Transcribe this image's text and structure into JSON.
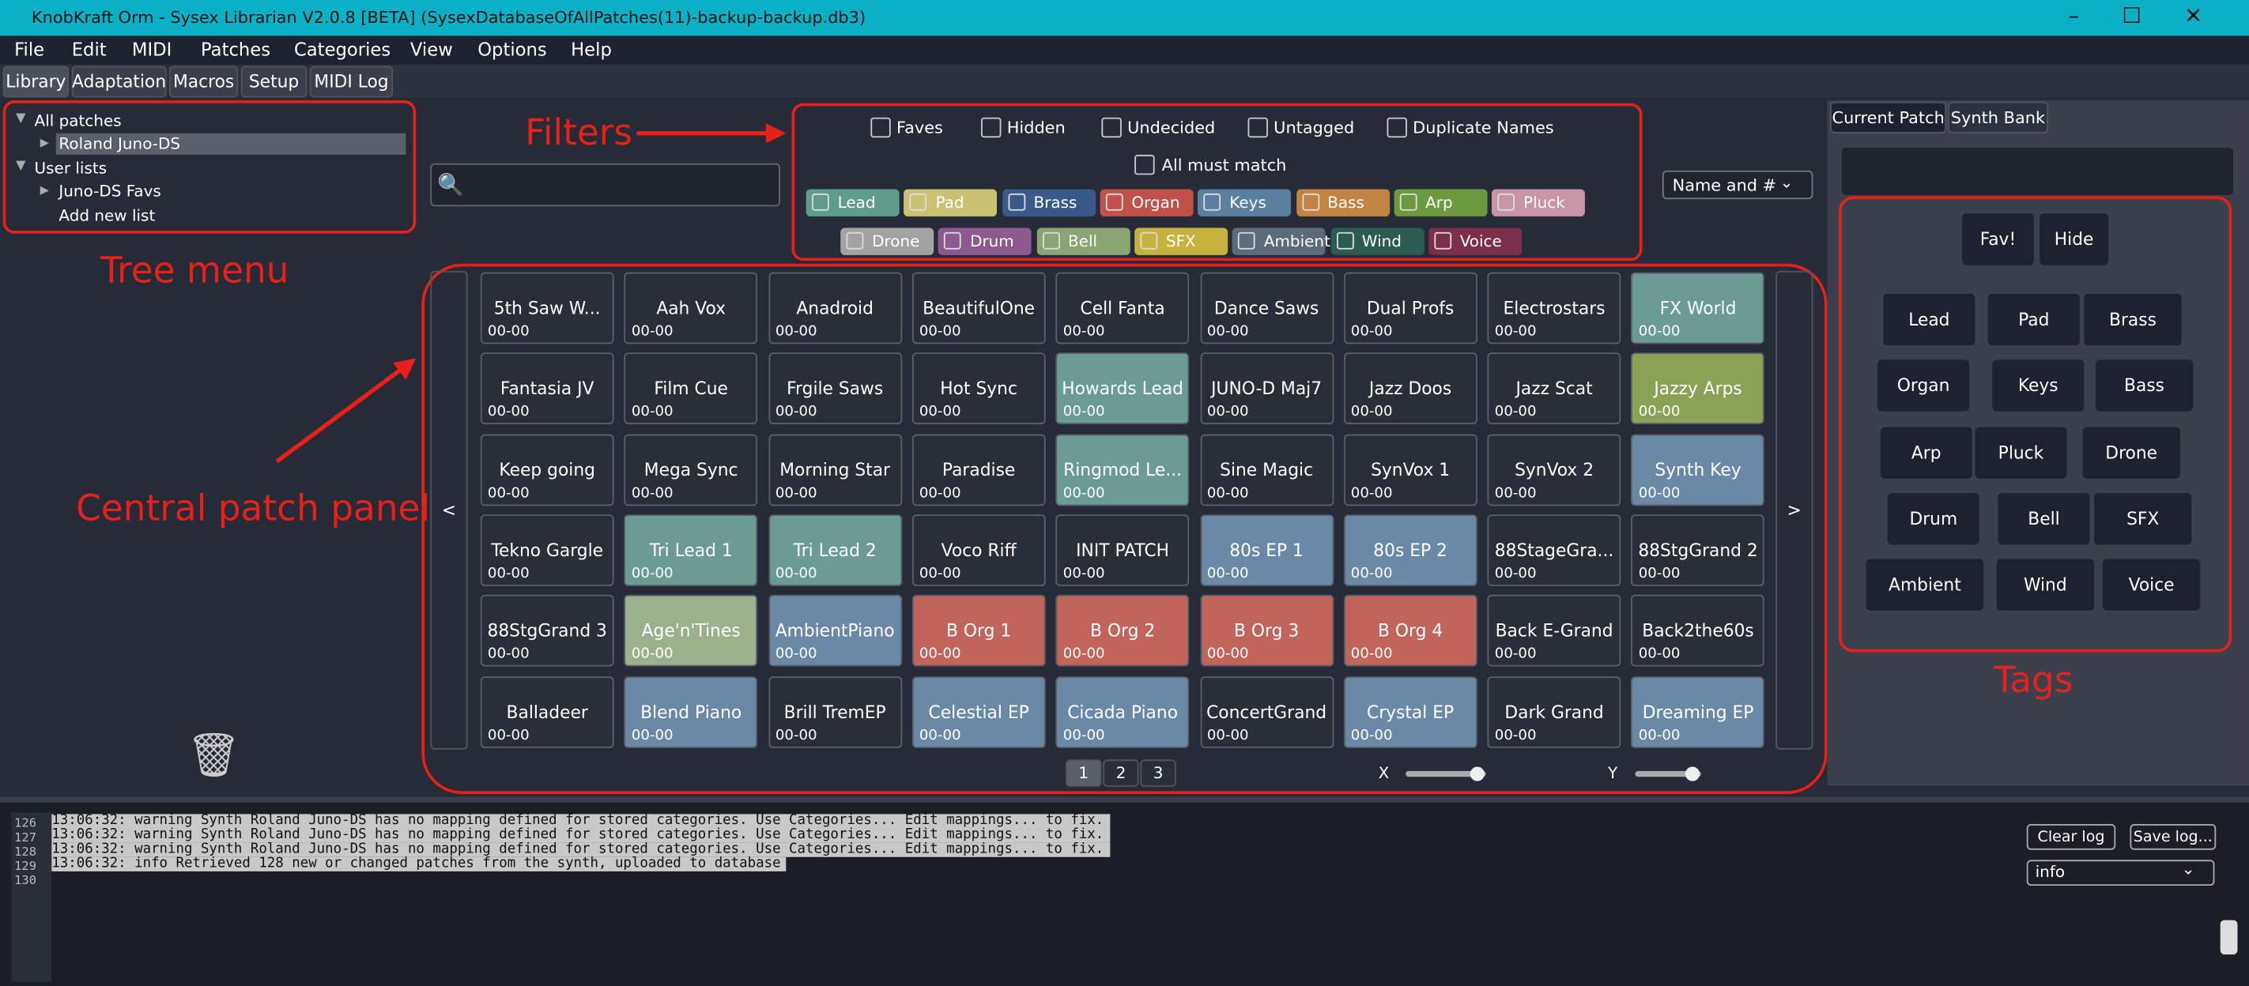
{
  "window": {
    "title": "KnobKraft Orm - Sysex Librarian V2.0.8 [BETA] (SysexDatabaseOfAllPatches(11)-backup-backup.db3)"
  },
  "menu": [
    "File",
    "Edit",
    "MIDI",
    "Patches",
    "Categories",
    "View",
    "Options",
    "Help"
  ],
  "tabs": [
    "Library",
    "Adaptation",
    "Macros",
    "Setup",
    "MIDI Log"
  ],
  "tree": {
    "all": "All patches",
    "synth": "Roland Juno-DS",
    "user": "User lists",
    "list": "Juno-DS Favs",
    "add": "Add new list"
  },
  "filters": {
    "checks": [
      "Faves",
      "Hidden",
      "Undecided",
      "Untagged",
      "Duplicate Names"
    ],
    "all_must_match": "All must match",
    "categories": [
      {
        "name": "Lead",
        "color": "#5f9c8c"
      },
      {
        "name": "Pad",
        "color": "#c9c273"
      },
      {
        "name": "Brass",
        "color": "#3b5a8c"
      },
      {
        "name": "Organ",
        "color": "#c0524a"
      },
      {
        "name": "Keys",
        "color": "#5a7fa0"
      },
      {
        "name": "Bass",
        "color": "#c38443"
      },
      {
        "name": "Arp",
        "color": "#6c9a3f"
      },
      {
        "name": "Pluck",
        "color": "#c795a6"
      },
      {
        "name": "Drone",
        "color": "#a3a3a3"
      },
      {
        "name": "Drum",
        "color": "#8c5a8e"
      },
      {
        "name": "Bell",
        "color": "#8aa473"
      },
      {
        "name": "SFX",
        "color": "#c6b23c"
      },
      {
        "name": "Ambient",
        "color": "#5b6b7a"
      },
      {
        "name": "Wind",
        "color": "#2b5c52"
      },
      {
        "name": "Voice",
        "color": "#7b2f4a"
      }
    ],
    "sort": "Name and #"
  },
  "patches": [
    {
      "name": "5th Saw W...",
      "num": "00-00",
      "color": "#2a2e38"
    },
    {
      "name": "Aah Vox",
      "num": "00-00",
      "color": "#2a2e38"
    },
    {
      "name": "Anadroid",
      "num": "00-00",
      "color": "#2a2e38"
    },
    {
      "name": "BeautifulOne",
      "num": "00-00",
      "color": "#2a2e38"
    },
    {
      "name": "Cell Fanta",
      "num": "00-00",
      "color": "#2a2e38"
    },
    {
      "name": "Dance Saws",
      "num": "00-00",
      "color": "#2a2e38"
    },
    {
      "name": "Dual Profs",
      "num": "00-00",
      "color": "#2a2e38"
    },
    {
      "name": "Electrostars",
      "num": "00-00",
      "color": "#2a2e38"
    },
    {
      "name": "FX World",
      "num": "00-00",
      "color": "#6a9c93"
    },
    {
      "name": "Fantasia JV",
      "num": "00-00",
      "color": "#2a2e38"
    },
    {
      "name": "Film Cue",
      "num": "00-00",
      "color": "#2a2e38"
    },
    {
      "name": "Frgile Saws",
      "num": "00-00",
      "color": "#2a2e38"
    },
    {
      "name": "Hot Sync",
      "num": "00-00",
      "color": "#2a2e38"
    },
    {
      "name": "Howards Lead",
      "num": "00-00",
      "color": "#6a9c93"
    },
    {
      "name": "JUNO-D Maj7",
      "num": "00-00",
      "color": "#2a2e38"
    },
    {
      "name": "Jazz Doos",
      "num": "00-00",
      "color": "#2a2e38"
    },
    {
      "name": "Jazz Scat",
      "num": "00-00",
      "color": "#2a2e38"
    },
    {
      "name": "Jazzy Arps",
      "num": "00-00",
      "color": "#89a256"
    },
    {
      "name": "Keep going",
      "num": "00-00",
      "color": "#2a2e38"
    },
    {
      "name": "Mega Sync",
      "num": "00-00",
      "color": "#2a2e38"
    },
    {
      "name": "Morning Star",
      "num": "00-00",
      "color": "#2a2e38"
    },
    {
      "name": "Paradise",
      "num": "00-00",
      "color": "#2a2e38"
    },
    {
      "name": "Ringmod Le...",
      "num": "00-00",
      "color": "#6a9c93"
    },
    {
      "name": "Sine Magic",
      "num": "00-00",
      "color": "#2a2e38"
    },
    {
      "name": "SynVox 1",
      "num": "00-00",
      "color": "#2a2e38"
    },
    {
      "name": "SynVox 2",
      "num": "00-00",
      "color": "#2a2e38"
    },
    {
      "name": "Synth Key",
      "num": "00-00",
      "color": "#6a89a6"
    },
    {
      "name": "Tekno Gargle",
      "num": "00-00",
      "color": "#2a2e38"
    },
    {
      "name": "Tri Lead 1",
      "num": "00-00",
      "color": "#6a9c93"
    },
    {
      "name": "Tri Lead 2",
      "num": "00-00",
      "color": "#6a9c93"
    },
    {
      "name": "Voco Riff",
      "num": "00-00",
      "color": "#2a2e38"
    },
    {
      "name": "INIT PATCH",
      "num": "00-00",
      "color": "#2a2e38"
    },
    {
      "name": "80s EP 1",
      "num": "00-00",
      "color": "#6a89a6"
    },
    {
      "name": "80s EP 2",
      "num": "00-00",
      "color": "#6a89a6"
    },
    {
      "name": "88StageGra...",
      "num": "00-00",
      "color": "#2a2e38"
    },
    {
      "name": "88StgGrand 2",
      "num": "00-00",
      "color": "#2a2e38"
    },
    {
      "name": "88StgGrand 3",
      "num": "00-00",
      "color": "#2a2e38"
    },
    {
      "name": "Age'n'Tines",
      "num": "00-00",
      "color": "#9bb18c"
    },
    {
      "name": "AmbientPiano",
      "num": "00-00",
      "color": "#6a89a6"
    },
    {
      "name": "B Org 1",
      "num": "00-00",
      "color": "#c1645a"
    },
    {
      "name": "B Org 2",
      "num": "00-00",
      "color": "#c1645a"
    },
    {
      "name": "B Org 3",
      "num": "00-00",
      "color": "#c1645a"
    },
    {
      "name": "B Org 4",
      "num": "00-00",
      "color": "#c1645a"
    },
    {
      "name": "Back E-Grand",
      "num": "00-00",
      "color": "#2a2e38"
    },
    {
      "name": "Back2the60s",
      "num": "00-00",
      "color": "#2a2e38"
    },
    {
      "name": "Balladeer",
      "num": "00-00",
      "color": "#2a2e38"
    },
    {
      "name": "Blend Piano",
      "num": "00-00",
      "color": "#6a89a6"
    },
    {
      "name": "Brill TremEP",
      "num": "00-00",
      "color": "#2a2e38"
    },
    {
      "name": "Celestial EP",
      "num": "00-00",
      "color": "#6a89a6"
    },
    {
      "name": "Cicada Piano",
      "num": "00-00",
      "color": "#6a89a6"
    },
    {
      "name": "ConcertGrand",
      "num": "00-00",
      "color": "#2a2e38"
    },
    {
      "name": "Crystal EP",
      "num": "00-00",
      "color": "#6a89a6"
    },
    {
      "name": "Dark Grand",
      "num": "00-00",
      "color": "#2a2e38"
    },
    {
      "name": "Dreaming EP",
      "num": "00-00",
      "color": "#6a89a6"
    }
  ],
  "pager": {
    "prev": "<",
    "next": ">",
    "pages": [
      "1",
      "2",
      "3"
    ],
    "x": "X",
    "y": "Y"
  },
  "right_tabs": [
    "Current Patch",
    "Synth Bank"
  ],
  "tags": {
    "top": [
      "Fav!",
      "Hide"
    ],
    "rows": [
      [
        "Lead",
        "Pad",
        "Brass"
      ],
      [
        "Organ",
        "Keys",
        "Bass"
      ],
      [
        "Arp",
        "Pluck",
        "Drone"
      ],
      [
        "Drum",
        "Bell",
        "SFX"
      ],
      [
        "Ambient",
        "Wind",
        "Voice"
      ]
    ]
  },
  "log": {
    "numbers": [
      "126",
      "127",
      "128",
      "129",
      "130"
    ],
    "lines": [
      "13:06:32: warning Synth Roland Juno-DS has no mapping defined for stored categories. Use Categories... Edit mappings... to fix.",
      "13:06:32: warning Synth Roland Juno-DS has no mapping defined for stored categories. Use Categories... Edit mappings... to fix.",
      "13:06:32: warning Synth Roland Juno-DS has no mapping defined for stored categories. Use Categories... Edit mappings... to fix.",
      "13:06:32: info Retrieved 128 new or changed patches from the synth, uploaded to database"
    ],
    "clear": "Clear log",
    "save": "Save log...",
    "level": "info"
  },
  "annotations": {
    "filters": "Filters",
    "tree": "Tree menu",
    "central": "Central patch panel",
    "tags": "Tags"
  }
}
